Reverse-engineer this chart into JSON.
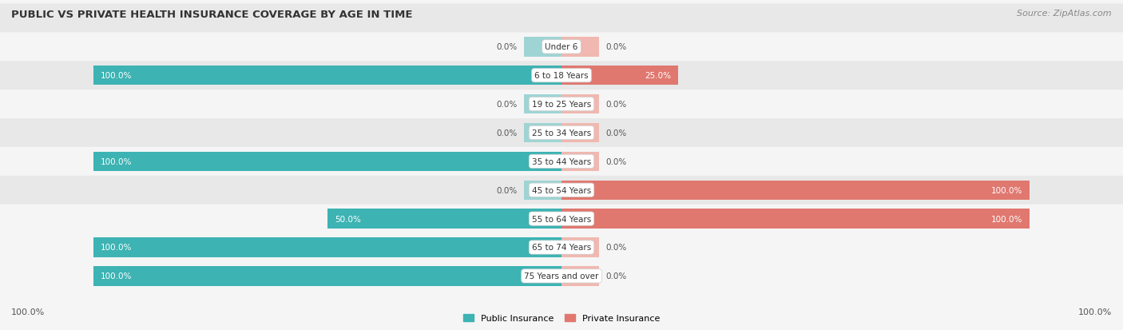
{
  "title": "PUBLIC VS PRIVATE HEALTH INSURANCE COVERAGE BY AGE IN TIME",
  "source": "Source: ZipAtlas.com",
  "categories": [
    "Under 6",
    "6 to 18 Years",
    "19 to 25 Years",
    "25 to 34 Years",
    "35 to 44 Years",
    "45 to 54 Years",
    "55 to 64 Years",
    "65 to 74 Years",
    "75 Years and over"
  ],
  "public_values": [
    0.0,
    100.0,
    0.0,
    0.0,
    100.0,
    0.0,
    50.0,
    100.0,
    100.0
  ],
  "private_values": [
    0.0,
    25.0,
    0.0,
    0.0,
    0.0,
    100.0,
    100.0,
    0.0,
    0.0
  ],
  "public_color": "#3db3b3",
  "private_color": "#e07870",
  "public_color_light": "#9fd4d4",
  "private_color_light": "#f0b8b0",
  "row_bg_light": "#f5f5f5",
  "row_bg_dark": "#e8e8e8",
  "text_color": "#444444",
  "title_color": "#333333",
  "source_color": "#888888",
  "label_color_white": "#ffffff",
  "label_color_dark": "#555555",
  "legend_public": "Public Insurance",
  "legend_private": "Private Insurance",
  "figsize": [
    14.06,
    4.14
  ],
  "dpi": 100,
  "bottom_left_label": "100.0%",
  "bottom_right_label": "100.0%"
}
